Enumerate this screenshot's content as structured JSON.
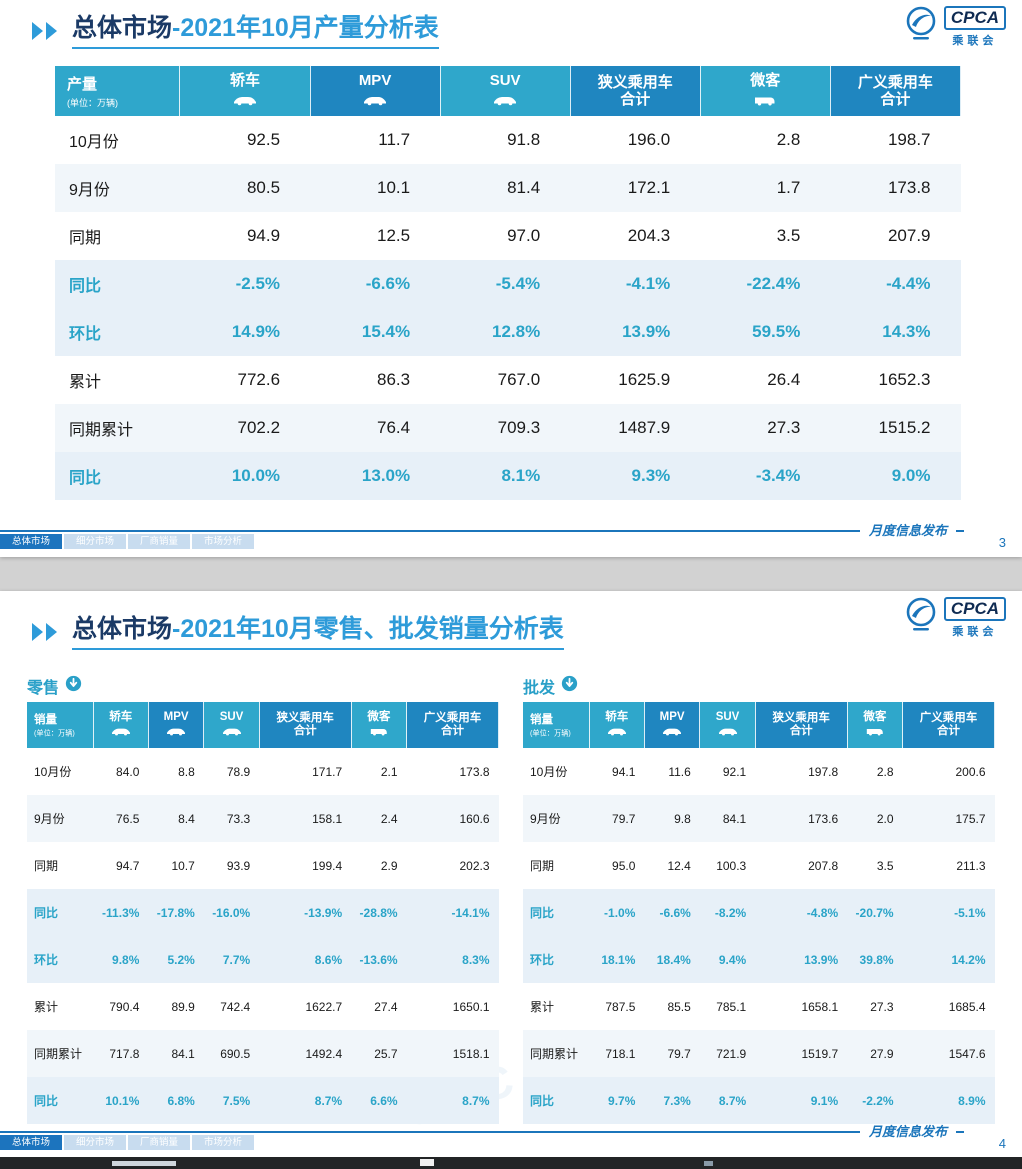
{
  "logo": {
    "text": "CPCA",
    "text_cn": "乘联会"
  },
  "watermark": "CPCA",
  "footer": {
    "tabs": [
      "总体市场",
      "细分市场",
      "厂商销量",
      "市场分析"
    ],
    "note": "月度信息发布"
  },
  "slide1": {
    "title_prefix": "总体市场",
    "title_suffix": "-2021年10月产量分析表",
    "page_number": "3",
    "table": {
      "unit_label": "产量",
      "unit_sub": "(单位：万辆)",
      "columns": [
        {
          "label": "轿车",
          "icon": "sedan-icon"
        },
        {
          "label": "MPV",
          "icon": "mpv-icon"
        },
        {
          "label": "SUV",
          "icon": "suv-icon"
        },
        {
          "label": "狭义乘用车",
          "label2": "合计"
        },
        {
          "label": "微客",
          "icon": "minibus-icon"
        },
        {
          "label": "广义乘用车",
          "label2": "合计"
        }
      ],
      "rows": [
        {
          "label": "10月份",
          "values": [
            "92.5",
            "11.7",
            "91.8",
            "196.0",
            "2.8",
            "198.7"
          ]
        },
        {
          "label": "9月份",
          "shaded": true,
          "values": [
            "80.5",
            "10.1",
            "81.4",
            "172.1",
            "1.7",
            "173.8"
          ]
        },
        {
          "label": "同期",
          "values": [
            "94.9",
            "12.5",
            "97.0",
            "204.3",
            "3.5",
            "207.9"
          ]
        },
        {
          "label": "同比",
          "pct": true,
          "values": [
            "-2.5%",
            "-6.6%",
            "-5.4%",
            "-4.1%",
            "-22.4%",
            "-4.4%"
          ]
        },
        {
          "label": "环比",
          "pct": true,
          "values": [
            "14.9%",
            "15.4%",
            "12.8%",
            "13.9%",
            "59.5%",
            "14.3%"
          ]
        },
        {
          "label": "累计",
          "values": [
            "772.6",
            "86.3",
            "767.0",
            "1625.9",
            "26.4",
            "1652.3"
          ]
        },
        {
          "label": "同期累计",
          "shaded": true,
          "values": [
            "702.2",
            "76.4",
            "709.3",
            "1487.9",
            "27.3",
            "1515.2"
          ]
        },
        {
          "label": "同比",
          "pct": true,
          "values": [
            "10.0%",
            "13.0%",
            "8.1%",
            "9.3%",
            "-3.4%",
            "9.0%"
          ]
        }
      ]
    }
  },
  "slide2": {
    "title_prefix": "总体市场",
    "title_suffix": "-2021年10月零售、批发销量分析表",
    "page_number": "4",
    "retail": {
      "section_label": "零售",
      "table": {
        "unit_label": "销量",
        "unit_sub": "(单位：万辆)",
        "columns": [
          {
            "label": "轿车",
            "icon": "sedan-icon"
          },
          {
            "label": "MPV",
            "icon": "mpv-icon"
          },
          {
            "label": "SUV",
            "icon": "suv-icon"
          },
          {
            "label": "狭义乘用车",
            "label2": "合计"
          },
          {
            "label": "微客",
            "icon": "minibus-icon"
          },
          {
            "label": "广义乘用车",
            "label2": "合计"
          }
        ],
        "rows": [
          {
            "label": "10月份",
            "values": [
              "84.0",
              "8.8",
              "78.9",
              "171.7",
              "2.1",
              "173.8"
            ]
          },
          {
            "label": "9月份",
            "shaded": true,
            "values": [
              "76.5",
              "8.4",
              "73.3",
              "158.1",
              "2.4",
              "160.6"
            ]
          },
          {
            "label": "同期",
            "values": [
              "94.7",
              "10.7",
              "93.9",
              "199.4",
              "2.9",
              "202.3"
            ]
          },
          {
            "label": "同比",
            "pct": true,
            "values": [
              "-11.3%",
              "-17.8%",
              "-16.0%",
              "-13.9%",
              "-28.8%",
              "-14.1%"
            ]
          },
          {
            "label": "环比",
            "pct": true,
            "values": [
              "9.8%",
              "5.2%",
              "7.7%",
              "8.6%",
              "-13.6%",
              "8.3%"
            ]
          },
          {
            "label": "累计",
            "values": [
              "790.4",
              "89.9",
              "742.4",
              "1622.7",
              "27.4",
              "1650.1"
            ]
          },
          {
            "label": "同期累计",
            "shaded": true,
            "values": [
              "717.8",
              "84.1",
              "690.5",
              "1492.4",
              "25.7",
              "1518.1"
            ]
          },
          {
            "label": "同比",
            "pct": true,
            "values": [
              "10.1%",
              "6.8%",
              "7.5%",
              "8.7%",
              "6.6%",
              "8.7%"
            ]
          }
        ]
      }
    },
    "wholesale": {
      "section_label": "批发",
      "table": {
        "unit_label": "销量",
        "unit_sub": "(单位：万辆)",
        "columns": [
          {
            "label": "轿车",
            "icon": "sedan-icon"
          },
          {
            "label": "MPV",
            "icon": "mpv-icon"
          },
          {
            "label": "SUV",
            "icon": "suv-icon"
          },
          {
            "label": "狭义乘用车",
            "label2": "合计"
          },
          {
            "label": "微客",
            "icon": "minibus-icon"
          },
          {
            "label": "广义乘用车",
            "label2": "合计"
          }
        ],
        "rows": [
          {
            "label": "10月份",
            "values": [
              "94.1",
              "11.6",
              "92.1",
              "197.8",
              "2.8",
              "200.6"
            ]
          },
          {
            "label": "9月份",
            "shaded": true,
            "values": [
              "79.7",
              "9.8",
              "84.1",
              "173.6",
              "2.0",
              "175.7"
            ]
          },
          {
            "label": "同期",
            "values": [
              "95.0",
              "12.4",
              "100.3",
              "207.8",
              "3.5",
              "211.3"
            ]
          },
          {
            "label": "同比",
            "pct": true,
            "values": [
              "-1.0%",
              "-6.6%",
              "-8.2%",
              "-4.8%",
              "-20.7%",
              "-5.1%"
            ]
          },
          {
            "label": "环比",
            "pct": true,
            "values": [
              "18.1%",
              "18.4%",
              "9.4%",
              "13.9%",
              "39.8%",
              "14.2%"
            ]
          },
          {
            "label": "累计",
            "values": [
              "787.5",
              "85.5",
              "785.1",
              "1658.1",
              "27.3",
              "1685.4"
            ]
          },
          {
            "label": "同期累计",
            "shaded": true,
            "values": [
              "718.1",
              "79.7",
              "721.9",
              "1519.7",
              "27.9",
              "1547.6"
            ]
          },
          {
            "label": "同比",
            "pct": true,
            "values": [
              "9.7%",
              "7.3%",
              "8.7%",
              "9.1%",
              "-2.2%",
              "8.9%"
            ]
          }
        ]
      }
    }
  }
}
